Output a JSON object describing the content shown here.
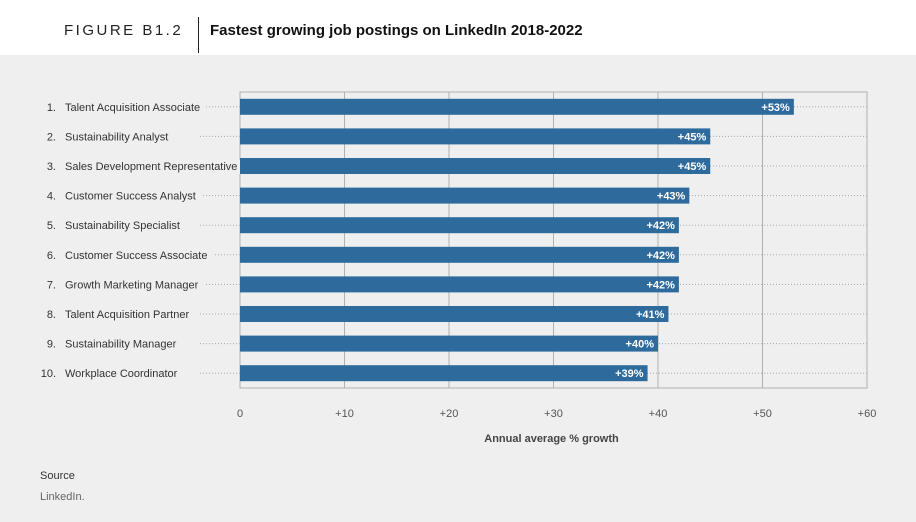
{
  "figure": {
    "label": "FIGURE B1.2",
    "title": "Fastest growing job postings on LinkedIn 2018-2022"
  },
  "source": {
    "heading": "Source",
    "text": "LinkedIn."
  },
  "colors": {
    "bar": "#2e6b9c",
    "panel": "#efefef",
    "grid": "#b0b0b0"
  },
  "chart_data": {
    "type": "bar",
    "orientation": "horizontal",
    "title": "Fastest growing job postings on LinkedIn 2018-2022",
    "xlabel": "Annual average % growth",
    "ylabel": "",
    "xlim": [
      0,
      60
    ],
    "xticks": [
      "0",
      "+10",
      "+20",
      "+30",
      "+40",
      "+50",
      "+60"
    ],
    "grid": true,
    "ranks": [
      "1.",
      "2.",
      "3.",
      "4.",
      "5.",
      "6.",
      "7.",
      "8.",
      "9.",
      "10."
    ],
    "categories": [
      "Talent Acquisition Associate",
      "Sustainability Analyst",
      "Sales Development Representative",
      "Customer Success Analyst",
      "Sustainability Specialist",
      "Customer Success Associate",
      "Growth Marketing Manager",
      "Talent Acquisition Partner",
      "Sustainability Manager",
      "Workplace Coordinator"
    ],
    "values": [
      53,
      45,
      45,
      43,
      42,
      42,
      42,
      41,
      40,
      39
    ],
    "data_labels": [
      "+53%",
      "+45%",
      "+45%",
      "+43%",
      "+42%",
      "+42%",
      "+42%",
      "+41%",
      "+40%",
      "+39%"
    ]
  }
}
